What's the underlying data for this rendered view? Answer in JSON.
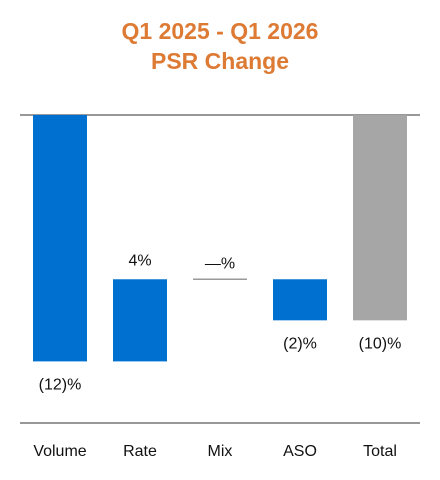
{
  "chart_data": {
    "type": "waterfall",
    "title": [
      "Q1 2025 - Q1 2026",
      "PSR Change"
    ],
    "categories": [
      "Volume",
      "Rate",
      "Mix",
      "ASO",
      "Total"
    ],
    "values": [
      -12,
      4,
      0,
      -2,
      -10
    ],
    "value_labels": [
      "(12)%",
      "4%",
      "—%",
      "(2)%",
      "(10)%"
    ],
    "totals": [
      false,
      false,
      false,
      false,
      true
    ],
    "colors": [
      "#0070d0",
      "#0070d0",
      "#999999",
      "#0070d0",
      "#a6a6a6"
    ],
    "ylim": [
      -15,
      0
    ]
  }
}
